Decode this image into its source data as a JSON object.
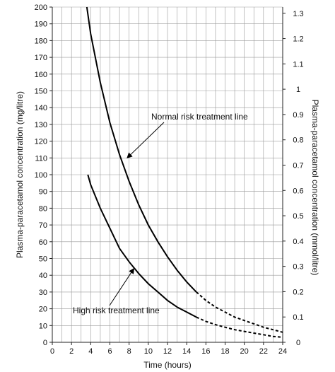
{
  "chart_data": {
    "type": "line",
    "title": "",
    "xlabel": "Time (hours)",
    "ylabel": "Plasma-paracetamol concentration (mg/litre)",
    "y2label": "Plasma-paracetamol concentration (mmol/litre)",
    "xlim": [
      0,
      24
    ],
    "ylim": [
      0,
      200
    ],
    "y2lim": [
      0,
      1.3245
    ],
    "xticks": [
      0,
      2,
      4,
      6,
      8,
      10,
      12,
      14,
      16,
      18,
      20,
      22,
      24
    ],
    "yticks": [
      0,
      10,
      20,
      30,
      40,
      50,
      60,
      70,
      80,
      90,
      100,
      110,
      120,
      130,
      140,
      150,
      160,
      170,
      180,
      190,
      200
    ],
    "y2ticks": [
      "0",
      "0.1",
      "0.2",
      "0.3",
      "0.4",
      "0.5",
      "0.6",
      "0.7",
      "0.8",
      "0.9",
      "1",
      "1.1",
      "1.2",
      "1.3"
    ],
    "grid": true,
    "series": [
      {
        "name": "Normal risk treatment line",
        "solid": {
          "x": [
            3.6,
            4,
            5,
            6,
            7,
            8,
            9,
            10,
            11,
            12,
            13,
            14,
            15
          ],
          "y": [
            200,
            184,
            155,
            131,
            112,
            96,
            82,
            70,
            60,
            51,
            43,
            36,
            30
          ]
        },
        "dashed": {
          "x": [
            15,
            16,
            17,
            18,
            19,
            20,
            21,
            22,
            23,
            24
          ],
          "y": [
            30,
            25,
            21,
            18,
            15,
            13,
            11,
            9,
            7.5,
            6
          ]
        }
      },
      {
        "name": "High risk treatment line",
        "solid": {
          "x": [
            3.7,
            4,
            5,
            6,
            7,
            8,
            9,
            10,
            11,
            12,
            13,
            14,
            15
          ],
          "y": [
            100,
            94,
            80,
            68,
            56,
            48,
            41,
            35,
            30,
            25,
            21,
            18,
            15
          ]
        },
        "dashed": {
          "x": [
            15,
            16,
            17,
            18,
            19,
            20,
            21,
            22,
            23,
            24
          ],
          "y": [
            15,
            12.5,
            10.5,
            9,
            7.5,
            6.5,
            5.5,
            4.5,
            3.5,
            3
          ]
        }
      }
    ],
    "annotations": [
      {
        "text": "Normal risk treatment line",
        "point": [
          7.8,
          110
        ]
      },
      {
        "text": "High risk treatment line",
        "point": [
          8.5,
          44
        ]
      }
    ]
  }
}
